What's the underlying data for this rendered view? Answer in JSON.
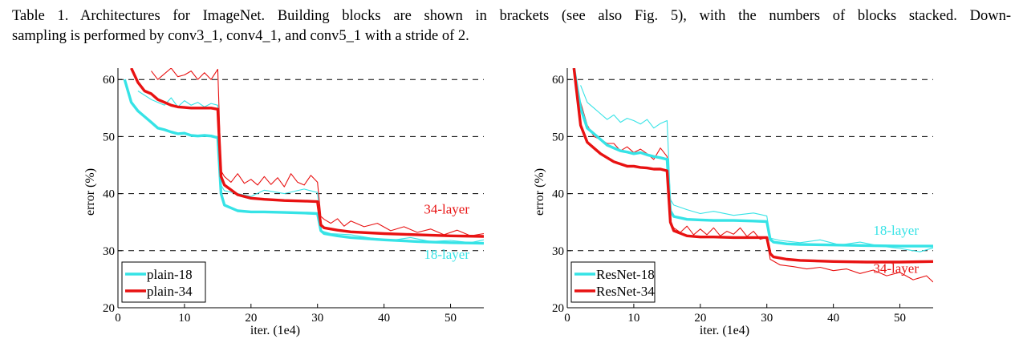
{
  "caption": {
    "line1": "Table 1. Architectures for ImageNet. Building blocks are shown in brackets (see also Fig. 5), with the numbers of blocks stacked. Down-",
    "line2": "sampling is performed by conv3_1, conv4_1, and conv5_1 with a stride of 2."
  },
  "colors": {
    "cyan": "#36e3e6",
    "red": "#e81212",
    "axis": "#000000"
  },
  "chart_data": [
    {
      "type": "line",
      "xlabel": "iter. (1e4)",
      "ylabel": "error (%)",
      "xlim": [
        0,
        55
      ],
      "ylim": [
        20,
        62
      ],
      "xticks": [
        0,
        10,
        20,
        30,
        40,
        50
      ],
      "yticks": [
        20,
        30,
        40,
        50,
        60
      ],
      "grid": "dashed horizontal at 30, 40, 50, 60",
      "legend": "bottom-left",
      "legend_entries": [
        "plain-18",
        "plain-34"
      ],
      "annotations": [
        {
          "text": "34-layer",
          "color": "red",
          "x": 46,
          "y": 36.5
        },
        {
          "text": "18-layer",
          "color": "cyan",
          "x": 46,
          "y": 28.6
        }
      ],
      "series": [
        {
          "name": "plain-18",
          "color": "cyan",
          "style": "thick",
          "x": [
            1,
            2,
            3,
            4,
            5,
            6,
            7,
            8,
            9,
            10,
            11,
            12,
            13,
            14,
            15,
            15.5,
            16,
            18,
            20,
            22,
            25,
            28,
            30,
            30.5,
            31,
            33,
            35,
            40,
            45,
            50,
            55
          ],
          "y": [
            60,
            56,
            54.5,
            53.5,
            52.5,
            51.5,
            51.2,
            50.8,
            50.5,
            50.6,
            50.2,
            50.1,
            50.2,
            50.1,
            49.8,
            40,
            38,
            37,
            36.8,
            36.8,
            36.7,
            36.6,
            36.5,
            33.5,
            33,
            32.6,
            32.3,
            31.9,
            31.6,
            31.4,
            31.3
          ]
        },
        {
          "name": "plain-34",
          "color": "red",
          "style": "thick",
          "x": [
            2,
            3,
            4,
            5,
            6,
            7,
            8,
            9,
            10,
            11,
            12,
            13,
            14,
            15,
            15.5,
            16,
            18,
            20,
            22,
            25,
            28,
            30,
            30.5,
            31,
            33,
            35,
            40,
            45,
            50,
            55
          ],
          "y": [
            62,
            59.5,
            58,
            57.5,
            56.5,
            56,
            55.5,
            55.2,
            55.1,
            55,
            55,
            55,
            55,
            54.8,
            43,
            41.5,
            39.8,
            39.2,
            39,
            38.8,
            38.7,
            38.6,
            34.5,
            34,
            33.6,
            33.3,
            33,
            32.8,
            32.6,
            32.5
          ]
        },
        {
          "name": "plain-18 (train)",
          "color": "cyan",
          "style": "thin",
          "x": [
            3,
            5,
            7,
            8,
            9,
            10,
            11,
            12,
            13,
            14,
            15,
            15.5,
            16,
            18,
            20,
            22,
            25,
            28,
            30,
            30.5,
            32,
            35,
            38,
            41,
            44,
            47,
            50,
            53,
            55
          ],
          "y": [
            58,
            56.5,
            55.5,
            56.8,
            55.2,
            56.3,
            55.5,
            56,
            55.2,
            55.8,
            55.5,
            41.5,
            40.5,
            40,
            39.5,
            40.6,
            40,
            40.8,
            40.2,
            33.5,
            33,
            32.8,
            32.2,
            31.8,
            32.3,
            31.6,
            31.8,
            31.4,
            31.9
          ]
        },
        {
          "name": "plain-34 (train)",
          "color": "red",
          "style": "thin",
          "x": [
            5,
            6,
            7,
            8,
            9,
            10,
            11,
            12,
            13,
            14,
            15,
            15.5,
            16,
            17,
            18,
            19,
            20,
            21,
            22,
            23,
            24,
            25,
            26,
            27,
            28,
            29,
            30,
            30.5,
            31,
            32,
            33,
            34,
            35,
            37,
            39,
            41,
            43,
            45,
            47,
            49,
            51,
            53,
            55
          ],
          "y": [
            61.5,
            60,
            61,
            62,
            60.5,
            60.8,
            61.5,
            60,
            61.2,
            60,
            61.8,
            44,
            43,
            42,
            43.5,
            41.8,
            42.5,
            41.5,
            43,
            41.6,
            42.8,
            41.2,
            43.5,
            42,
            41.5,
            43.2,
            42,
            36,
            35.5,
            34.8,
            35.6,
            34.3,
            35.2,
            34.2,
            34.8,
            33.5,
            34.2,
            33.2,
            33.8,
            32.8,
            33.6,
            32.6,
            33
          ]
        }
      ]
    },
    {
      "type": "line",
      "xlabel": "iter. (1e4)",
      "ylabel": "error (%)",
      "xlim": [
        0,
        55
      ],
      "ylim": [
        20,
        62
      ],
      "xticks": [
        0,
        10,
        20,
        30,
        40,
        50
      ],
      "yticks": [
        20,
        30,
        40,
        50,
        60
      ],
      "grid": "dashed horizontal at 30, 40, 50, 60",
      "legend": "bottom-left",
      "legend_entries": [
        "ResNet-18",
        "ResNet-34"
      ],
      "annotations": [
        {
          "text": "18-layer",
          "color": "cyan",
          "x": 46,
          "y": 32.8
        },
        {
          "text": "34-layer",
          "color": "red",
          "x": 46,
          "y": 26.1
        }
      ],
      "series": [
        {
          "name": "ResNet-18",
          "color": "cyan",
          "style": "thick",
          "x": [
            1,
            2,
            3,
            4,
            5,
            6,
            7,
            8,
            9,
            10,
            11,
            12,
            13,
            14,
            15,
            15.5,
            16,
            18,
            20,
            22,
            25,
            28,
            30,
            30.5,
            31,
            33,
            35,
            40,
            45,
            50,
            55
          ],
          "y": [
            62,
            55,
            51.5,
            50.5,
            49.5,
            48.5,
            48,
            47.5,
            47.3,
            47,
            47.2,
            46.8,
            46.5,
            46.3,
            46,
            37,
            36,
            35.5,
            35.4,
            35.3,
            35.3,
            35.2,
            35.1,
            32,
            31.5,
            31.2,
            31.1,
            31,
            30.9,
            30.8,
            30.8
          ]
        },
        {
          "name": "ResNet-34",
          "color": "red",
          "style": "thick",
          "x": [
            1,
            2,
            3,
            4,
            5,
            6,
            7,
            8,
            9,
            10,
            11,
            12,
            13,
            14,
            15,
            15.5,
            16,
            18,
            20,
            22,
            25,
            28,
            30,
            30.5,
            31,
            33,
            35,
            40,
            45,
            50,
            55
          ],
          "y": [
            62,
            52,
            49,
            48,
            47,
            46.3,
            45.6,
            45.2,
            44.8,
            44.8,
            44.6,
            44.5,
            44.3,
            44.3,
            44,
            35,
            33.5,
            32.6,
            32.4,
            32.4,
            32.3,
            32.3,
            32.3,
            29.5,
            28.9,
            28.5,
            28.3,
            28.1,
            28,
            28,
            28.1
          ]
        },
        {
          "name": "ResNet-18 (train)",
          "color": "cyan",
          "style": "thin",
          "x": [
            2,
            3,
            4,
            5,
            6,
            7,
            8,
            9,
            10,
            11,
            12,
            13,
            14,
            15,
            15.5,
            16,
            18,
            20,
            22,
            25,
            28,
            30,
            30.5,
            32,
            35,
            38,
            41,
            44,
            47,
            50,
            53,
            55
          ],
          "y": [
            59,
            56,
            55,
            54,
            53,
            53.8,
            52.5,
            53.2,
            52.8,
            52.2,
            53,
            51.5,
            52.3,
            52.8,
            39,
            38,
            37.2,
            36.5,
            36.9,
            36.2,
            36.6,
            36.1,
            32.2,
            31.8,
            31.4,
            31.9,
            31,
            31.5,
            30.8,
            30.4,
            29.8,
            30.5
          ]
        },
        {
          "name": "ResNet-34 (train)",
          "color": "red",
          "style": "thin",
          "x": [
            2,
            3,
            4,
            5,
            6,
            7,
            8,
            9,
            10,
            11,
            12,
            13,
            14,
            15,
            15.5,
            16,
            17,
            18,
            19,
            20,
            21,
            22,
            23,
            24,
            25,
            26,
            27,
            28,
            29,
            30,
            30.5,
            32,
            34,
            36,
            38,
            40,
            42,
            44,
            46,
            48,
            50,
            52,
            54,
            55
          ],
          "y": [
            56,
            52,
            50,
            49.5,
            48.8,
            48.8,
            47.5,
            48.2,
            47.2,
            47.8,
            47,
            46,
            48,
            46.5,
            35,
            34,
            33.2,
            34.3,
            32.8,
            33.8,
            32.8,
            34,
            32.6,
            33.4,
            32.9,
            34,
            32.5,
            33.4,
            32,
            32.3,
            28.5,
            27.5,
            27.2,
            26.8,
            27.1,
            26.5,
            26.8,
            26,
            26.6,
            25.6,
            26.2,
            24.9,
            25.6,
            24.5
          ]
        }
      ]
    }
  ]
}
